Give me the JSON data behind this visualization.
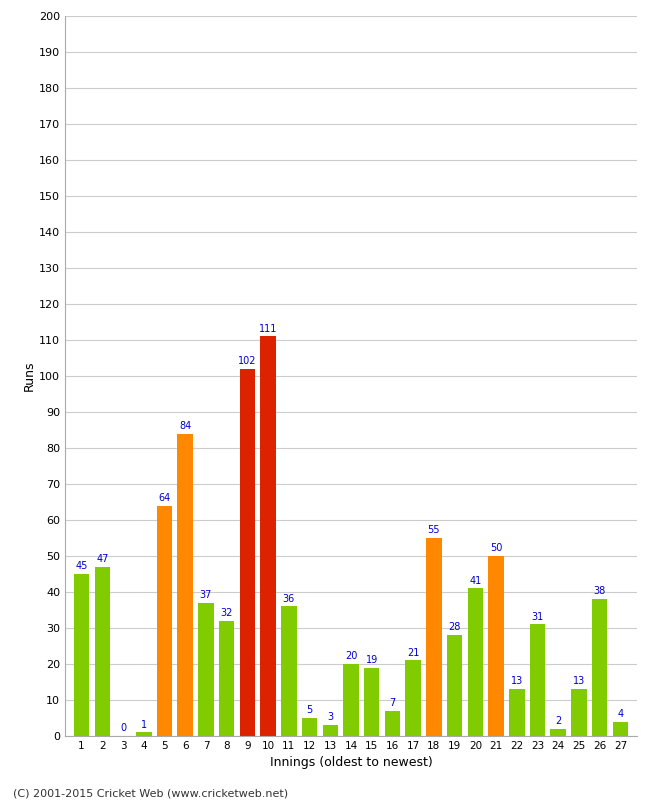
{
  "innings": [
    1,
    2,
    3,
    4,
    5,
    6,
    7,
    8,
    9,
    10,
    11,
    12,
    13,
    14,
    15,
    16,
    17,
    18,
    19,
    20,
    21,
    22,
    23,
    24,
    25,
    26,
    27
  ],
  "values": [
    45,
    47,
    0,
    1,
    64,
    84,
    37,
    32,
    102,
    111,
    36,
    5,
    3,
    20,
    19,
    7,
    21,
    55,
    28,
    41,
    50,
    13,
    31,
    2,
    13,
    38,
    4
  ],
  "colors": [
    "#80cc00",
    "#80cc00",
    "#80cc00",
    "#80cc00",
    "#ff8800",
    "#ff8800",
    "#80cc00",
    "#80cc00",
    "#dd2200",
    "#dd2200",
    "#80cc00",
    "#80cc00",
    "#80cc00",
    "#80cc00",
    "#80cc00",
    "#80cc00",
    "#80cc00",
    "#ff8800",
    "#80cc00",
    "#80cc00",
    "#ff8800",
    "#80cc00",
    "#80cc00",
    "#80cc00",
    "#80cc00",
    "#80cc00",
    "#80cc00"
  ],
  "xlabel": "Innings (oldest to newest)",
  "ylabel": "Runs",
  "ylim": [
    0,
    200
  ],
  "yticks": [
    0,
    10,
    20,
    30,
    40,
    50,
    60,
    70,
    80,
    90,
    100,
    110,
    120,
    130,
    140,
    150,
    160,
    170,
    180,
    190,
    200
  ],
  "footer": "(C) 2001-2015 Cricket Web (www.cricketweb.net)",
  "label_color": "#0000cc",
  "bg_color": "#ffffff",
  "grid_color": "#cccccc"
}
